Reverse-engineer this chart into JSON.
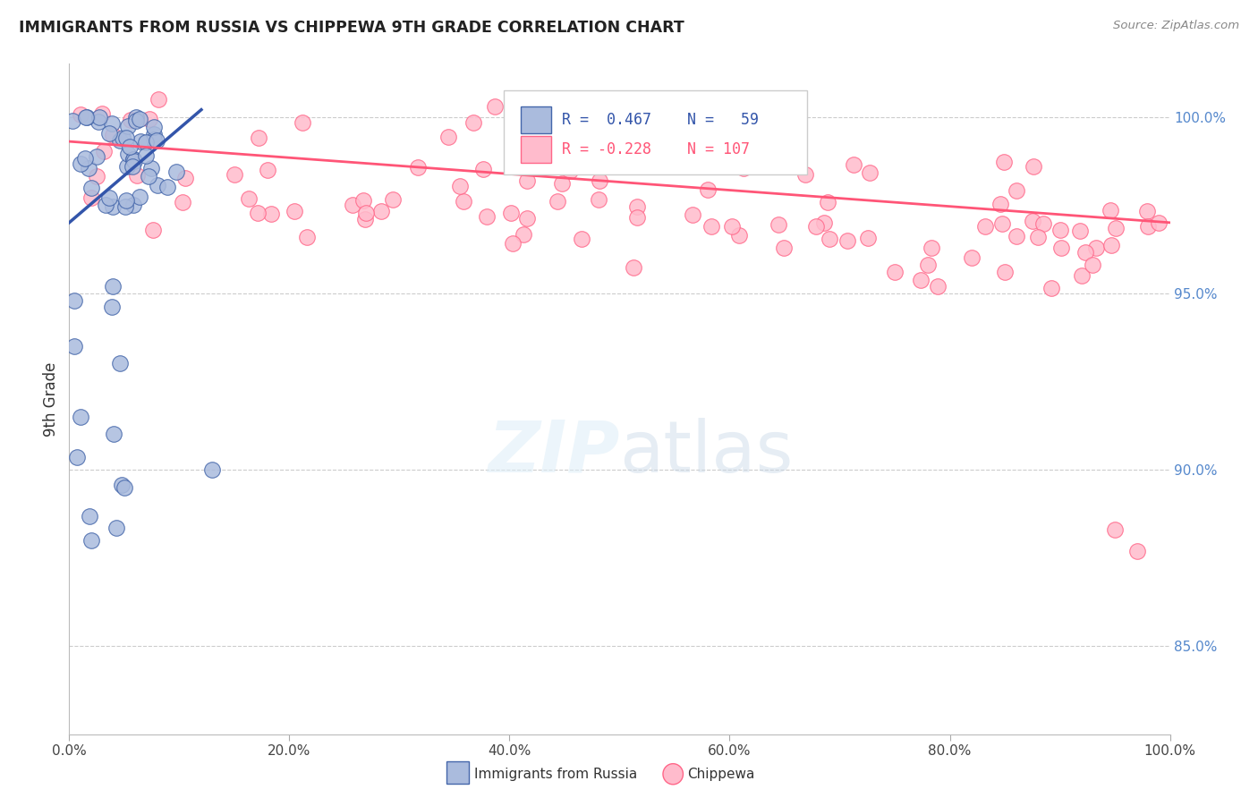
{
  "title": "IMMIGRANTS FROM RUSSIA VS CHIPPEWA 9TH GRADE CORRELATION CHART",
  "source": "Source: ZipAtlas.com",
  "ylabel": "9th Grade",
  "yaxis_labels": [
    "85.0%",
    "90.0%",
    "95.0%",
    "100.0%"
  ],
  "yaxis_ticks": [
    0.85,
    0.9,
    0.95,
    1.0
  ],
  "xlim": [
    0.0,
    1.0
  ],
  "ylim": [
    0.825,
    1.015
  ],
  "color_blue_fill": "#AABBDD",
  "color_blue_edge": "#4466AA",
  "color_pink_fill": "#FFBBCC",
  "color_pink_edge": "#FF6688",
  "color_blue_line": "#3355AA",
  "color_pink_line": "#FF5577",
  "legend_r1": "R =  0.467",
  "legend_n1": "N =   59",
  "legend_r2": "R = -0.228",
  "legend_n2": "N = 107",
  "watermark": "ZIPatlas",
  "blue_line_x0": 0.0,
  "blue_line_y0": 0.97,
  "blue_line_x1": 0.12,
  "blue_line_y1": 1.002,
  "pink_line_x0": 0.0,
  "pink_line_x1": 1.0,
  "pink_line_y0": 0.993,
  "pink_line_y1": 0.97
}
